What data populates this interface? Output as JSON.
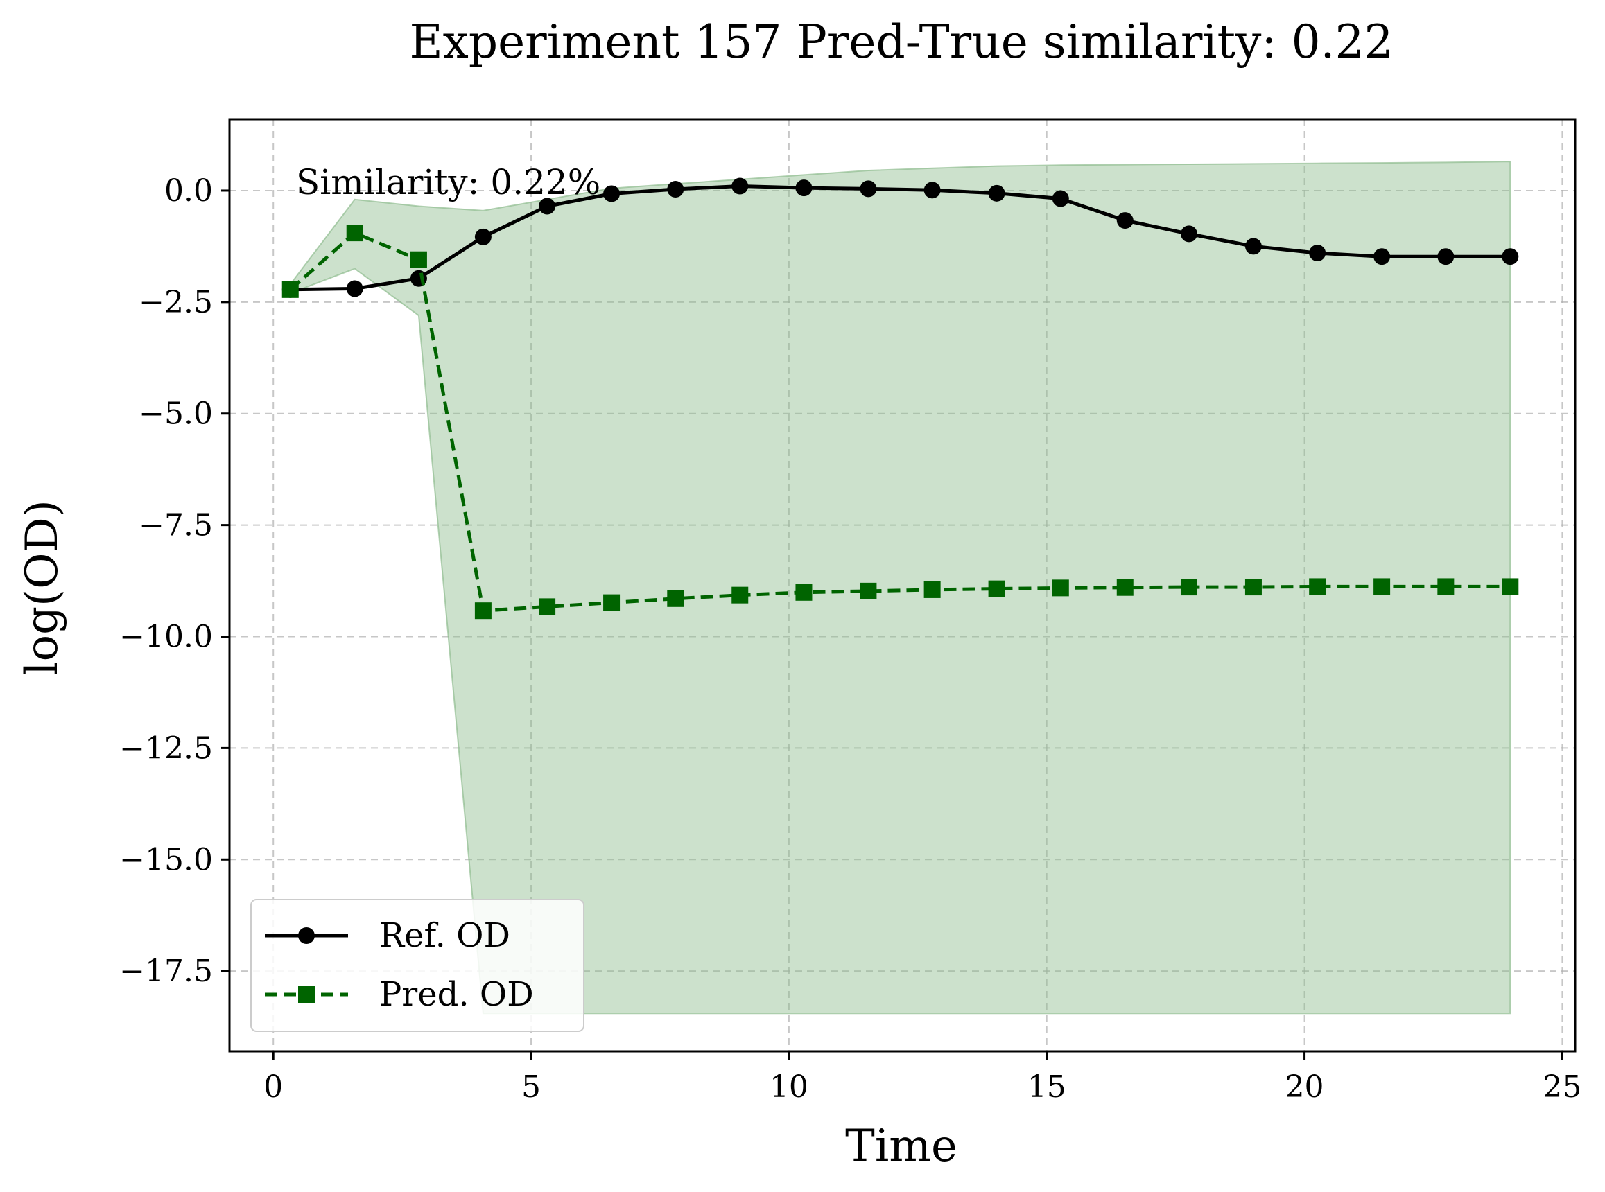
{
  "chart_data": {
    "type": "line",
    "title": "Experiment 157 Pred-True similarity: 0.22",
    "xlabel": "Time",
    "ylabel": "log(OD)",
    "xlim": [
      -0.85,
      25.25
    ],
    "ylim": [
      -19.3,
      1.6
    ],
    "xticks": [
      0,
      5,
      10,
      15,
      20,
      25
    ],
    "xtick_labels": [
      "0",
      "5",
      "10",
      "15",
      "20",
      "25"
    ],
    "yticks": [
      0.0,
      -2.5,
      -5.0,
      -7.5,
      -10.0,
      -12.5,
      -15.0,
      -17.5
    ],
    "ytick_labels": [
      "0.0",
      "−2.5",
      "−5.0",
      "−7.5",
      "−10.0",
      "−12.5",
      "−15.0",
      "−17.5"
    ],
    "grid": true,
    "legend_position": "lower-left",
    "annotation": "Similarity: 0.22%",
    "x": [
      0.33,
      1.58,
      2.82,
      4.07,
      5.31,
      6.56,
      7.8,
      9.05,
      10.29,
      11.54,
      12.78,
      14.03,
      15.27,
      16.52,
      17.76,
      19.01,
      20.25,
      21.5,
      22.74,
      23.99
    ],
    "series": [
      {
        "name": "Ref. OD",
        "color": "#000000",
        "style": "solid",
        "marker": "circle",
        "values": [
          -2.22,
          -2.2,
          -1.97,
          -1.04,
          -0.35,
          -0.07,
          0.03,
          0.1,
          0.06,
          0.04,
          0.01,
          -0.06,
          -0.18,
          -0.67,
          -0.97,
          -1.25,
          -1.4,
          -1.48,
          -1.48,
          -1.48
        ]
      },
      {
        "name": "Pred. OD",
        "color": "#006400",
        "style": "dashed",
        "marker": "square",
        "values": [
          -2.22,
          -0.95,
          -1.55,
          -9.42,
          -9.33,
          -9.24,
          -9.15,
          -9.07,
          -9.01,
          -8.98,
          -8.95,
          -8.93,
          -8.91,
          -8.9,
          -8.89,
          -8.89,
          -8.88,
          -8.88,
          -8.88,
          -8.88
        ]
      }
    ],
    "band": {
      "color": "#8fbc8f",
      "x": [
        0.33,
        1.58,
        2.82,
        4.07,
        5.31,
        6.56,
        7.8,
        9.05,
        10.29,
        11.54,
        12.78,
        14.03,
        15.27,
        16.52,
        17.76,
        19.01,
        20.25,
        21.5,
        22.74,
        23.99
      ],
      "upper": [
        -2.1,
        -0.2,
        -0.35,
        -0.45,
        -0.2,
        0.05,
        0.15,
        0.25,
        0.35,
        0.45,
        0.5,
        0.55,
        0.57,
        0.58,
        0.59,
        0.6,
        0.61,
        0.62,
        0.63,
        0.65
      ],
      "lower": [
        -2.3,
        -1.75,
        -2.8,
        -18.45,
        -18.45,
        -18.45,
        -18.45,
        -18.45,
        -18.45,
        -18.45,
        -18.45,
        -18.45,
        -18.45,
        -18.45,
        -18.45,
        -18.45,
        -18.45,
        -18.45,
        -18.45,
        -18.45
      ]
    }
  }
}
